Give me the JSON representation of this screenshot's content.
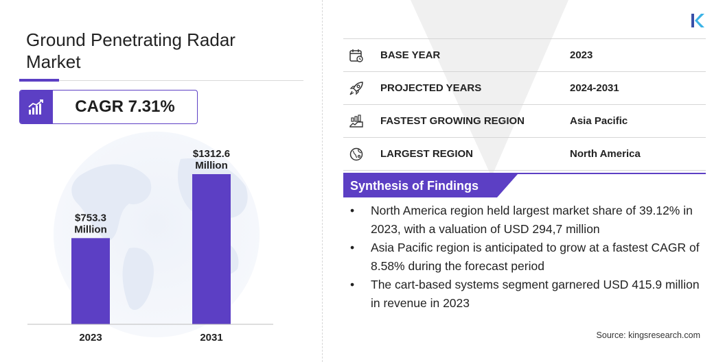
{
  "title": "Ground Penetrating Radar Market",
  "cagr": {
    "label": "CAGR 7.31%",
    "icon": "growth-chart-icon"
  },
  "chart_data": {
    "type": "bar",
    "categories": [
      "2023",
      "2031"
    ],
    "values": [
      753.3,
      1312.6
    ],
    "value_labels": [
      "$753.3 Million",
      "$1312.6 Million"
    ],
    "title": "",
    "xlabel": "",
    "ylabel": "",
    "ylim": [
      0,
      1312.6
    ],
    "grid": false,
    "bar_color": "#5c3fc4"
  },
  "info": [
    {
      "icon": "calendar-icon",
      "label": "BASE YEAR",
      "value": "2023"
    },
    {
      "icon": "rocket-icon",
      "label": "PROJECTED YEARS",
      "value": "2024-2031"
    },
    {
      "icon": "growing-region-icon",
      "label": "FASTEST GROWING REGION",
      "value": "Asia Pacific"
    },
    {
      "icon": "globe-icon",
      "label": "LARGEST REGION",
      "value": "North America"
    }
  ],
  "synthesis": {
    "title": "Synthesis of Findings",
    "findings": [
      "North America region held largest market share of 39.12% in 2023, with a valuation of USD 294,7 million",
      "Asia Pacific region is anticipated to grow at a fastest CAGR of 8.58% during the forecast period",
      "The cart-based systems segment garnered USD 415.9 million in revenue in 2023"
    ]
  },
  "bullet_char": "•",
  "source": "Source: kingsresearch.com",
  "logo": "kings-research-logo",
  "colors": {
    "accent": "#5c3fc4",
    "text": "#1e1e1e"
  }
}
